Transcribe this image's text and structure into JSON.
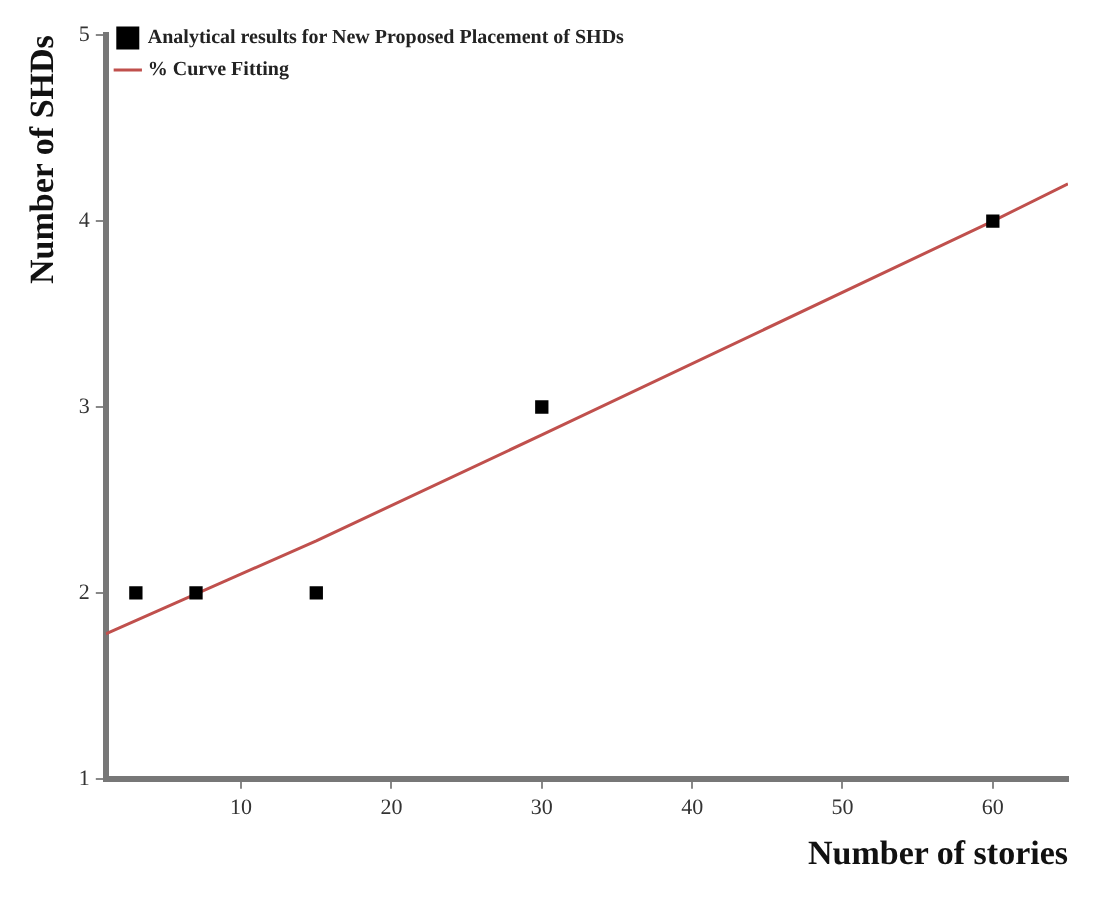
{
  "chart_data": {
    "type": "scatter",
    "xlabel": "Number of stories",
    "ylabel": "Number of SHDs",
    "xlim": [
      1,
      65
    ],
    "ylim": [
      1,
      5
    ],
    "xticks": [
      10,
      20,
      30,
      40,
      50,
      60
    ],
    "yticks": [
      1,
      2,
      3,
      4,
      5
    ],
    "grid": false,
    "legend": "top left",
    "marker": "square",
    "series": [
      {
        "name": "Analytical results for New Proposed Placement of SHDs",
        "type": "scatter",
        "color": "#000000",
        "x": [
          3,
          7,
          15,
          30,
          60
        ],
        "values": [
          2,
          2,
          2,
          3,
          4
        ]
      },
      {
        "name": "% Curve Fitting",
        "type": "line",
        "color": "#c0504d",
        "line_style": "solid",
        "marker": "none",
        "x": [
          1,
          15,
          30,
          60,
          65
        ],
        "values": [
          1.78,
          2.28,
          2.85,
          4.0,
          4.2
        ]
      }
    ]
  }
}
